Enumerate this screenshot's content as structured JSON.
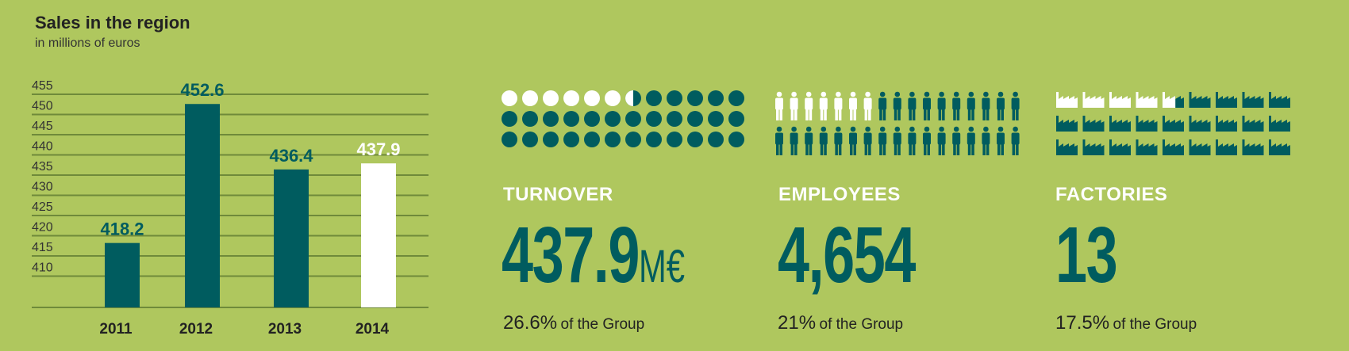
{
  "header": {
    "title": "Sales in the region",
    "subtitle": "in millions of euros"
  },
  "chart_data": {
    "type": "bar",
    "title": "Sales in the region",
    "subtitle": "in millions of euros",
    "categories": [
      "2011",
      "2012",
      "2013",
      "2014"
    ],
    "values": [
      418.2,
      452.6,
      436.4,
      437.9
    ],
    "value_labels": [
      "418.2",
      "452.6",
      "436.4",
      "437.9"
    ],
    "ylim": [
      405,
      455
    ],
    "yticks": [
      410,
      415,
      420,
      425,
      430,
      435,
      440,
      445,
      450,
      455
    ],
    "grid": true,
    "colors": {
      "bar": "#005c5f",
      "highlight_bar": "#ffffff",
      "grid": "#6f8a3a",
      "highlight_label": "#ffffff",
      "label": "#005c5f"
    },
    "highlight_index": 3
  },
  "kpis": [
    {
      "label": "TURNOVER",
      "value": "437.9",
      "unit": "M€",
      "share_value": "26.6%",
      "share_text": "of the Group",
      "icon": "circle-icon",
      "icon_total": 36,
      "icon_highlight": 6.6
    },
    {
      "label": "EMPLOYEES",
      "value": "4,654",
      "unit": "",
      "share_value": "21%",
      "share_text": "of the Group",
      "icon": "person-icon",
      "icon_total": 34,
      "icon_highlight": 7
    },
    {
      "label": "FACTORIES",
      "value": "13",
      "unit": "",
      "share_value": "17.5%",
      "share_text": "of the Group",
      "icon": "factory-icon",
      "icon_total": 27,
      "icon_highlight": 4.6
    }
  ],
  "colors": {
    "background": "#afc75e",
    "primary": "#005c5f",
    "highlight": "#ffffff"
  }
}
